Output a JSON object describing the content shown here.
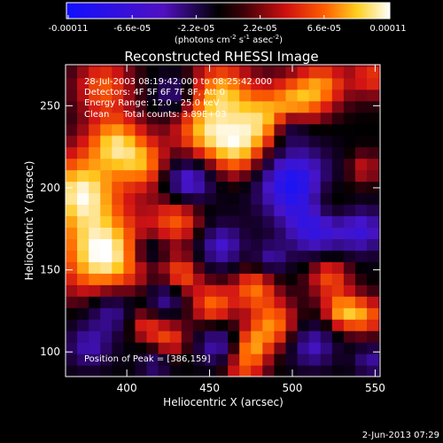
{
  "colorbar": {
    "tick_labels": [
      "-0.00011",
      "-6.6e-05",
      "-2.2e-05",
      "2.2e-05",
      "6.6e-05",
      "0.00011"
    ],
    "min": -0.00011,
    "max": 0.00011,
    "units_label": "(photons cm^-2 s^-1 asec^-2)"
  },
  "chart_data": {
    "type": "heatmap",
    "title": "Reconstructed RHESSI Image",
    "xlabel": "Heliocentric X (arcsec)",
    "ylabel": "Heliocentric Y (arcsec)",
    "xlim": [
      363,
      553
    ],
    "ylim": [
      85,
      275
    ],
    "xticks": [
      400,
      450,
      500,
      550
    ],
    "yticks": [
      100,
      150,
      200,
      250
    ],
    "annotations": [
      "28-Jul-2003 08:19:42.000 to 08:25:42.000",
      "Detectors: 4F 5F 6F 7F 8F, Att 0",
      "Energy Range: 12.0 - 25.0 keV",
      "Clean     Total counts: 3.89E+03"
    ],
    "peak_label": "Position of Peak = [386,159]",
    "peak": [
      386,
      159
    ],
    "colormap": [
      "#0000ff",
      "#000000",
      "#ff0000",
      "#ffff00",
      "#ffffff"
    ]
  },
  "footer": {
    "timestamp": "2-Jun-2013 07:29"
  }
}
